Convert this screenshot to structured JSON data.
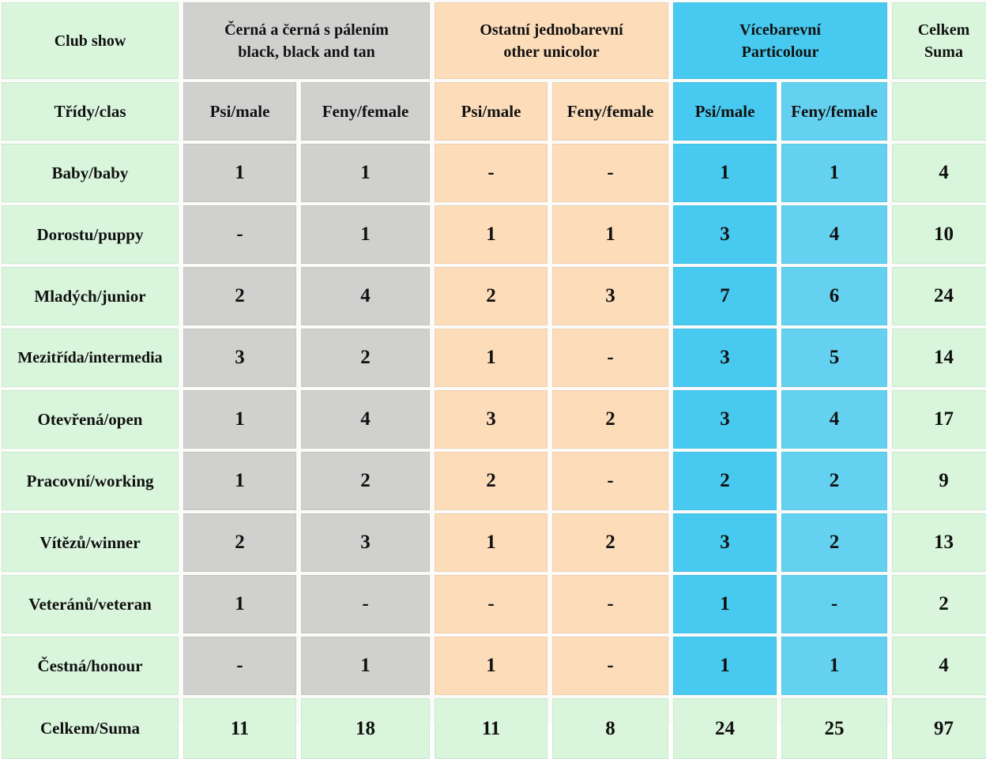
{
  "table": {
    "corner": "Club show",
    "groups": [
      {
        "line1": "Černá a černá s pálením",
        "line2": "black, black and tan",
        "color": "#d0d0cf"
      },
      {
        "line1": "Ostatní jednobarevní",
        "line2": "other unicolor",
        "color": "#fcdcb9"
      },
      {
        "line1": "Vícebarevní",
        "line2": "Particolour",
        "color": "#48c9ef"
      }
    ],
    "total_header": {
      "line1": "Celkem",
      "line2": "Suma"
    },
    "class_label": "Třídy/clas",
    "sub_headers": [
      "Psi/male",
      "Feny/female",
      "Psi/male",
      "Feny/female",
      "Psi/male",
      "Feny/female"
    ],
    "rows": [
      {
        "label": "Baby/baby",
        "values": [
          "1",
          "1",
          "-",
          "-",
          "1",
          "1"
        ],
        "total": "4"
      },
      {
        "label": "Dorostu/puppy",
        "values": [
          "-",
          "1",
          "1",
          "1",
          "3",
          "4"
        ],
        "total": "10"
      },
      {
        "label": "Mladých/junior",
        "values": [
          "2",
          "4",
          "2",
          "3",
          "7",
          "6"
        ],
        "total": "24"
      },
      {
        "label": "Mezitřída/intermedia",
        "values": [
          "3",
          "2",
          "1",
          "-",
          "3",
          "5"
        ],
        "total": "14"
      },
      {
        "label": "Otevřená/open",
        "values": [
          "1",
          "4",
          "3",
          "2",
          "3",
          "4"
        ],
        "total": "17"
      },
      {
        "label": "Pracovní/working",
        "values": [
          "1",
          "2",
          "2",
          "-",
          "2",
          "2"
        ],
        "total": "9"
      },
      {
        "label": "Vítězů/winner",
        "values": [
          "2",
          "3",
          "1",
          "2",
          "3",
          "2"
        ],
        "total": "13"
      },
      {
        "label": "Veteránů/veteran",
        "values": [
          "1",
          "-",
          "-",
          "-",
          "1",
          "-"
        ],
        "total": "2"
      },
      {
        "label": "Čestná/honour",
        "values": [
          "-",
          "1",
          "1",
          "-",
          "1",
          "1"
        ],
        "total": "4"
      }
    ],
    "sum_row": {
      "label": "Celkem/Suma",
      "values": [
        "11",
        "18",
        "11",
        "8",
        "24",
        "25"
      ],
      "total": "97"
    }
  }
}
